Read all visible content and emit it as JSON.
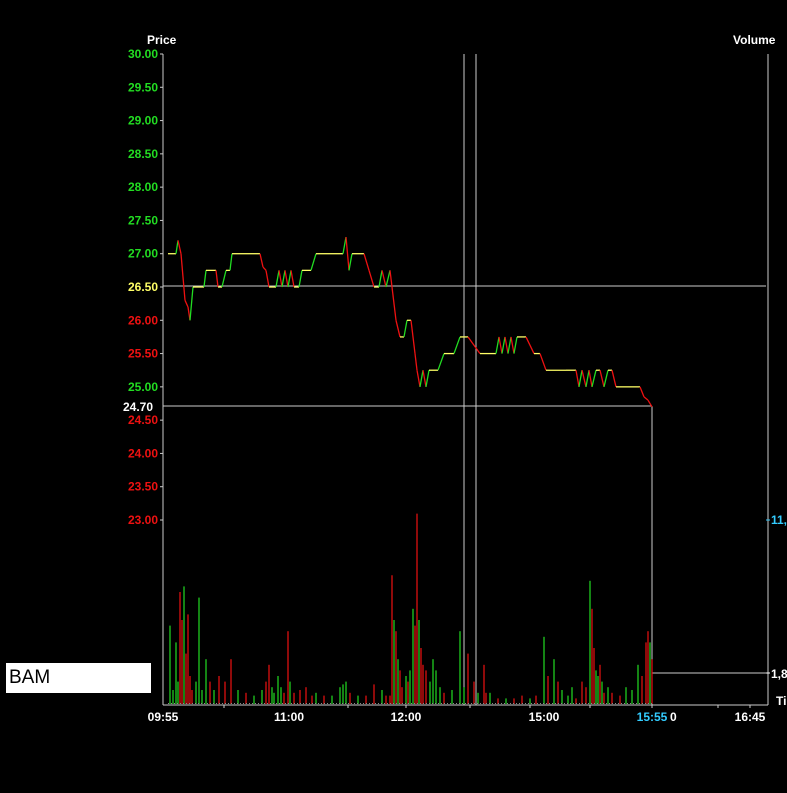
{
  "chart_data": {
    "type": "line",
    "title": "",
    "price_axis_label": "Price",
    "volume_axis_label": "Volume",
    "time_axis_label": "Ti",
    "symbol": "BAM",
    "ylim": [
      23.0,
      30.0
    ],
    "y_ticks": [
      "30.00",
      "29.50",
      "29.00",
      "28.50",
      "28.00",
      "27.50",
      "27.00",
      "26.50",
      "26.00",
      "25.50",
      "25.00",
      "24.50",
      "24.00",
      "23.50",
      "23.00"
    ],
    "reference_price": "26.50",
    "last_price": "24.70",
    "x_ticks": [
      "09:55",
      "11:00",
      "12:00",
      "15:00",
      "16:45"
    ],
    "x_ticks_partial": "0",
    "current_time": "15:55",
    "volume_labels": {
      "top": "11,",
      "bottom": "1,8"
    },
    "colors": {
      "up": "#22dd22",
      "down": "#ee1111",
      "price_line": "#ffff66",
      "highlight": "#33ccff",
      "grid": "#cccccc"
    },
    "series": [
      {
        "values": [
          [
            0,
            27.0
          ],
          [
            8,
            27.0
          ],
          [
            10,
            27.2
          ],
          [
            13,
            27.0
          ],
          [
            17,
            26.3
          ],
          [
            20,
            26.2
          ],
          [
            22,
            26.0
          ],
          [
            25,
            26.5
          ],
          [
            36,
            26.5
          ],
          [
            38,
            26.75
          ],
          [
            48,
            26.75
          ],
          [
            50,
            26.5
          ],
          [
            54,
            26.5
          ],
          [
            58,
            26.75
          ],
          [
            62,
            26.75
          ],
          [
            64,
            27.0
          ],
          [
            80,
            27.0
          ],
          [
            92,
            27.0
          ],
          [
            95,
            26.8
          ],
          [
            98,
            26.75
          ],
          [
            101,
            26.5
          ],
          [
            108,
            26.5
          ],
          [
            111,
            26.75
          ],
          [
            114,
            26.5
          ],
          [
            117,
            26.75
          ],
          [
            120,
            26.5
          ],
          [
            123,
            26.75
          ],
          [
            126,
            26.5
          ],
          [
            131,
            26.5
          ],
          [
            134,
            26.75
          ],
          [
            143,
            26.75
          ],
          [
            148,
            27.0
          ],
          [
            160,
            27.0
          ],
          [
            175,
            27.0
          ],
          [
            178,
            27.25
          ],
          [
            181,
            26.75
          ],
          [
            184,
            27.0
          ],
          [
            196,
            27.0
          ],
          [
            201,
            26.75
          ],
          [
            206,
            26.5
          ],
          [
            211,
            26.5
          ],
          [
            214,
            26.75
          ],
          [
            218,
            26.5
          ],
          [
            222,
            26.75
          ],
          [
            224,
            26.5
          ],
          [
            228,
            26.0
          ],
          [
            232,
            25.75
          ],
          [
            236,
            25.75
          ],
          [
            239,
            26.0
          ],
          [
            243,
            26.0
          ],
          [
            247,
            25.5
          ],
          [
            249,
            25.25
          ],
          [
            252,
            25.0
          ],
          [
            255,
            25.25
          ],
          [
            258,
            25.0
          ],
          [
            261,
            25.25
          ],
          [
            270,
            25.25
          ],
          [
            276,
            25.5
          ],
          [
            286,
            25.5
          ],
          [
            292,
            25.75
          ],
          [
            300,
            25.75
          ],
          [
            312,
            25.5
          ],
          [
            328,
            25.5
          ],
          [
            331,
            25.75
          ],
          [
            334,
            25.5
          ],
          [
            337,
            25.75
          ],
          [
            340,
            25.5
          ],
          [
            343,
            25.75
          ],
          [
            346,
            25.5
          ],
          [
            349,
            25.75
          ],
          [
            358,
            25.75
          ],
          [
            366,
            25.5
          ],
          [
            372,
            25.5
          ],
          [
            378,
            25.25
          ],
          [
            398,
            25.25
          ],
          [
            408,
            25.25
          ],
          [
            411,
            25.0
          ],
          [
            414,
            25.25
          ],
          [
            418,
            25.0
          ],
          [
            421,
            25.25
          ],
          [
            424,
            25.0
          ],
          [
            428,
            25.25
          ],
          [
            432,
            25.25
          ],
          [
            436,
            25.0
          ],
          [
            440,
            25.25
          ],
          [
            444,
            25.25
          ],
          [
            448,
            25.0
          ],
          [
            460,
            25.0
          ],
          [
            472,
            25.0
          ],
          [
            476,
            24.85
          ],
          [
            480,
            24.8
          ],
          [
            484,
            24.7
          ]
        ]
      }
    ],
    "volume": [
      [
        2,
        0.28
      ],
      [
        5,
        0.05
      ],
      [
        8,
        0.22
      ],
      [
        10,
        0.08
      ],
      [
        12,
        0.4
      ],
      [
        14,
        0.3
      ],
      [
        16,
        0.42
      ],
      [
        18,
        0.18
      ],
      [
        20,
        0.32
      ],
      [
        22,
        0.1
      ],
      [
        24,
        0.05
      ],
      [
        28,
        0.08
      ],
      [
        31,
        0.38
      ],
      [
        34,
        0.05
      ],
      [
        38,
        0.16
      ],
      [
        42,
        0.08
      ],
      [
        46,
        0.05
      ],
      [
        51,
        0.1
      ],
      [
        57,
        0.08
      ],
      [
        63,
        0.16
      ],
      [
        70,
        0.05
      ],
      [
        78,
        0.04
      ],
      [
        86,
        0.03
      ],
      [
        94,
        0.05
      ],
      [
        98,
        0.08
      ],
      [
        101,
        0.14
      ],
      [
        104,
        0.06
      ],
      [
        106,
        0.04
      ],
      [
        110,
        0.1
      ],
      [
        113,
        0.06
      ],
      [
        116,
        0.04
      ],
      [
        120,
        0.26
      ],
      [
        122,
        0.08
      ],
      [
        126,
        0.04
      ],
      [
        132,
        0.05
      ],
      [
        138,
        0.06
      ],
      [
        144,
        0.03
      ],
      [
        148,
        0.04
      ],
      [
        156,
        0.03
      ],
      [
        164,
        0.03
      ],
      [
        172,
        0.06
      ],
      [
        175,
        0.07
      ],
      [
        178,
        0.08
      ],
      [
        182,
        0.04
      ],
      [
        190,
        0.03
      ],
      [
        198,
        0.03
      ],
      [
        206,
        0.07
      ],
      [
        214,
        0.05
      ],
      [
        218,
        0.03
      ],
      [
        222,
        0.03
      ],
      [
        224,
        0.46
      ],
      [
        226,
        0.3
      ],
      [
        228,
        0.26
      ],
      [
        230,
        0.16
      ],
      [
        232,
        0.12
      ],
      [
        234,
        0.06
      ],
      [
        238,
        0.1
      ],
      [
        240,
        0.08
      ],
      [
        242,
        0.12
      ],
      [
        245,
        0.34
      ],
      [
        247,
        0.28
      ],
      [
        249,
        0.68
      ],
      [
        251,
        0.3
      ],
      [
        253,
        0.2
      ],
      [
        255,
        0.14
      ],
      [
        258,
        0.12
      ],
      [
        262,
        0.08
      ],
      [
        265,
        0.16
      ],
      [
        268,
        0.12
      ],
      [
        272,
        0.06
      ],
      [
        276,
        0.04
      ],
      [
        284,
        0.05
      ],
      [
        292,
        0.26
      ],
      [
        296,
        0.06
      ],
      [
        300,
        0.18
      ],
      [
        306,
        0.08
      ],
      [
        310,
        0.04
      ],
      [
        316,
        0.14
      ],
      [
        318,
        0.04
      ],
      [
        322,
        0.04
      ],
      [
        330,
        0.02
      ],
      [
        338,
        0.02
      ],
      [
        346,
        0.02
      ],
      [
        354,
        0.03
      ],
      [
        362,
        0.02
      ],
      [
        368,
        0.03
      ],
      [
        376,
        0.24
      ],
      [
        380,
        0.1
      ],
      [
        386,
        0.16
      ],
      [
        390,
        0.08
      ],
      [
        394,
        0.05
      ],
      [
        400,
        0.03
      ],
      [
        404,
        0.06
      ],
      [
        408,
        0.02
      ],
      [
        414,
        0.08
      ],
      [
        418,
        0.06
      ],
      [
        422,
        0.44
      ],
      [
        424,
        0.34
      ],
      [
        426,
        0.2
      ],
      [
        428,
        0.12
      ],
      [
        430,
        0.1
      ],
      [
        432,
        0.14
      ],
      [
        434,
        0.08
      ],
      [
        436,
        0.04
      ],
      [
        440,
        0.06
      ],
      [
        444,
        0.04
      ],
      [
        452,
        0.03
      ],
      [
        458,
        0.06
      ],
      [
        464,
        0.05
      ],
      [
        470,
        0.14
      ],
      [
        474,
        0.1
      ],
      [
        478,
        0.22
      ],
      [
        480,
        0.26
      ],
      [
        482,
        0.22
      ],
      [
        484,
        0.16
      ]
    ]
  }
}
